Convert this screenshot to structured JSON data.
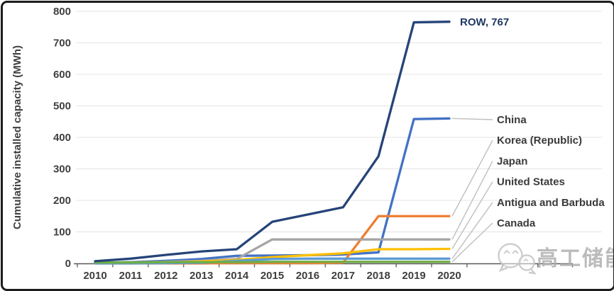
{
  "chart_data": {
    "type": "line",
    "title": "",
    "xlabel": "",
    "ylabel": "Cumulative installed capacity (MWh)",
    "ylim": [
      0,
      800
    ],
    "yticks": [
      0,
      100,
      200,
      300,
      400,
      500,
      600,
      700,
      800
    ],
    "categories": [
      "2010",
      "2011",
      "2012",
      "2013",
      "2014",
      "2015",
      "2016",
      "2017",
      "2018",
      "2019",
      "2020"
    ],
    "grid": "horizontal-light",
    "legend_position": "right-edge-leader-labels",
    "series": [
      {
        "name": "China",
        "color": "#4472C4",
        "label_style": "leader",
        "end_label": "China",
        "values": [
          2,
          4,
          8,
          14,
          24,
          25,
          26,
          28,
          35,
          458,
          460
        ]
      },
      {
        "name": "Korea (Republic)",
        "color": "#ED7D31",
        "label_style": "leader",
        "end_label": "Korea (Republic)",
        "values": [
          0,
          0,
          0,
          0,
          1,
          1,
          1,
          2,
          150,
          150,
          150
        ]
      },
      {
        "name": "Japan",
        "color": "#A5A5A5",
        "label_style": "leader",
        "end_label": "Japan",
        "values": [
          2,
          3,
          5,
          8,
          14,
          76,
          76,
          76,
          76,
          76,
          76
        ]
      },
      {
        "name": "United States",
        "color": "#FFC000",
        "label_style": "leader",
        "end_label": "United States",
        "values": [
          1,
          2,
          3,
          6,
          11,
          20,
          26,
          32,
          45,
          45,
          46
        ]
      },
      {
        "name": "Antigua and Barbuda",
        "color": "#5B9BD5",
        "label_style": "leader",
        "end_label": "Antigua and Barbuda",
        "values": [
          0,
          0,
          1,
          2,
          8,
          14,
          15,
          15,
          15,
          15,
          15
        ]
      },
      {
        "name": "Canada",
        "color": "#70AD47",
        "label_style": "leader",
        "end_label": "Canada",
        "values": [
          3,
          3,
          4,
          4,
          4,
          5,
          5,
          5,
          5,
          5,
          5
        ]
      },
      {
        "name": "ROW",
        "color": "#264478",
        "label_style": "inline",
        "end_label": "ROW, 767",
        "values": [
          7,
          15,
          27,
          38,
          45,
          132,
          155,
          178,
          340,
          765,
          767
        ]
      }
    ]
  },
  "watermark": {
    "text": "高工储能",
    "icon": "wechat-style-chat-bubbles-icon"
  },
  "colors": {
    "row_label": "#1F3864",
    "leader_line": "#BFBFBF",
    "gridline": "#E4E4E4",
    "axis_line": "#595959",
    "frame_border": "#1C1C1C",
    "watermark_gray": "#C8C8C8"
  }
}
